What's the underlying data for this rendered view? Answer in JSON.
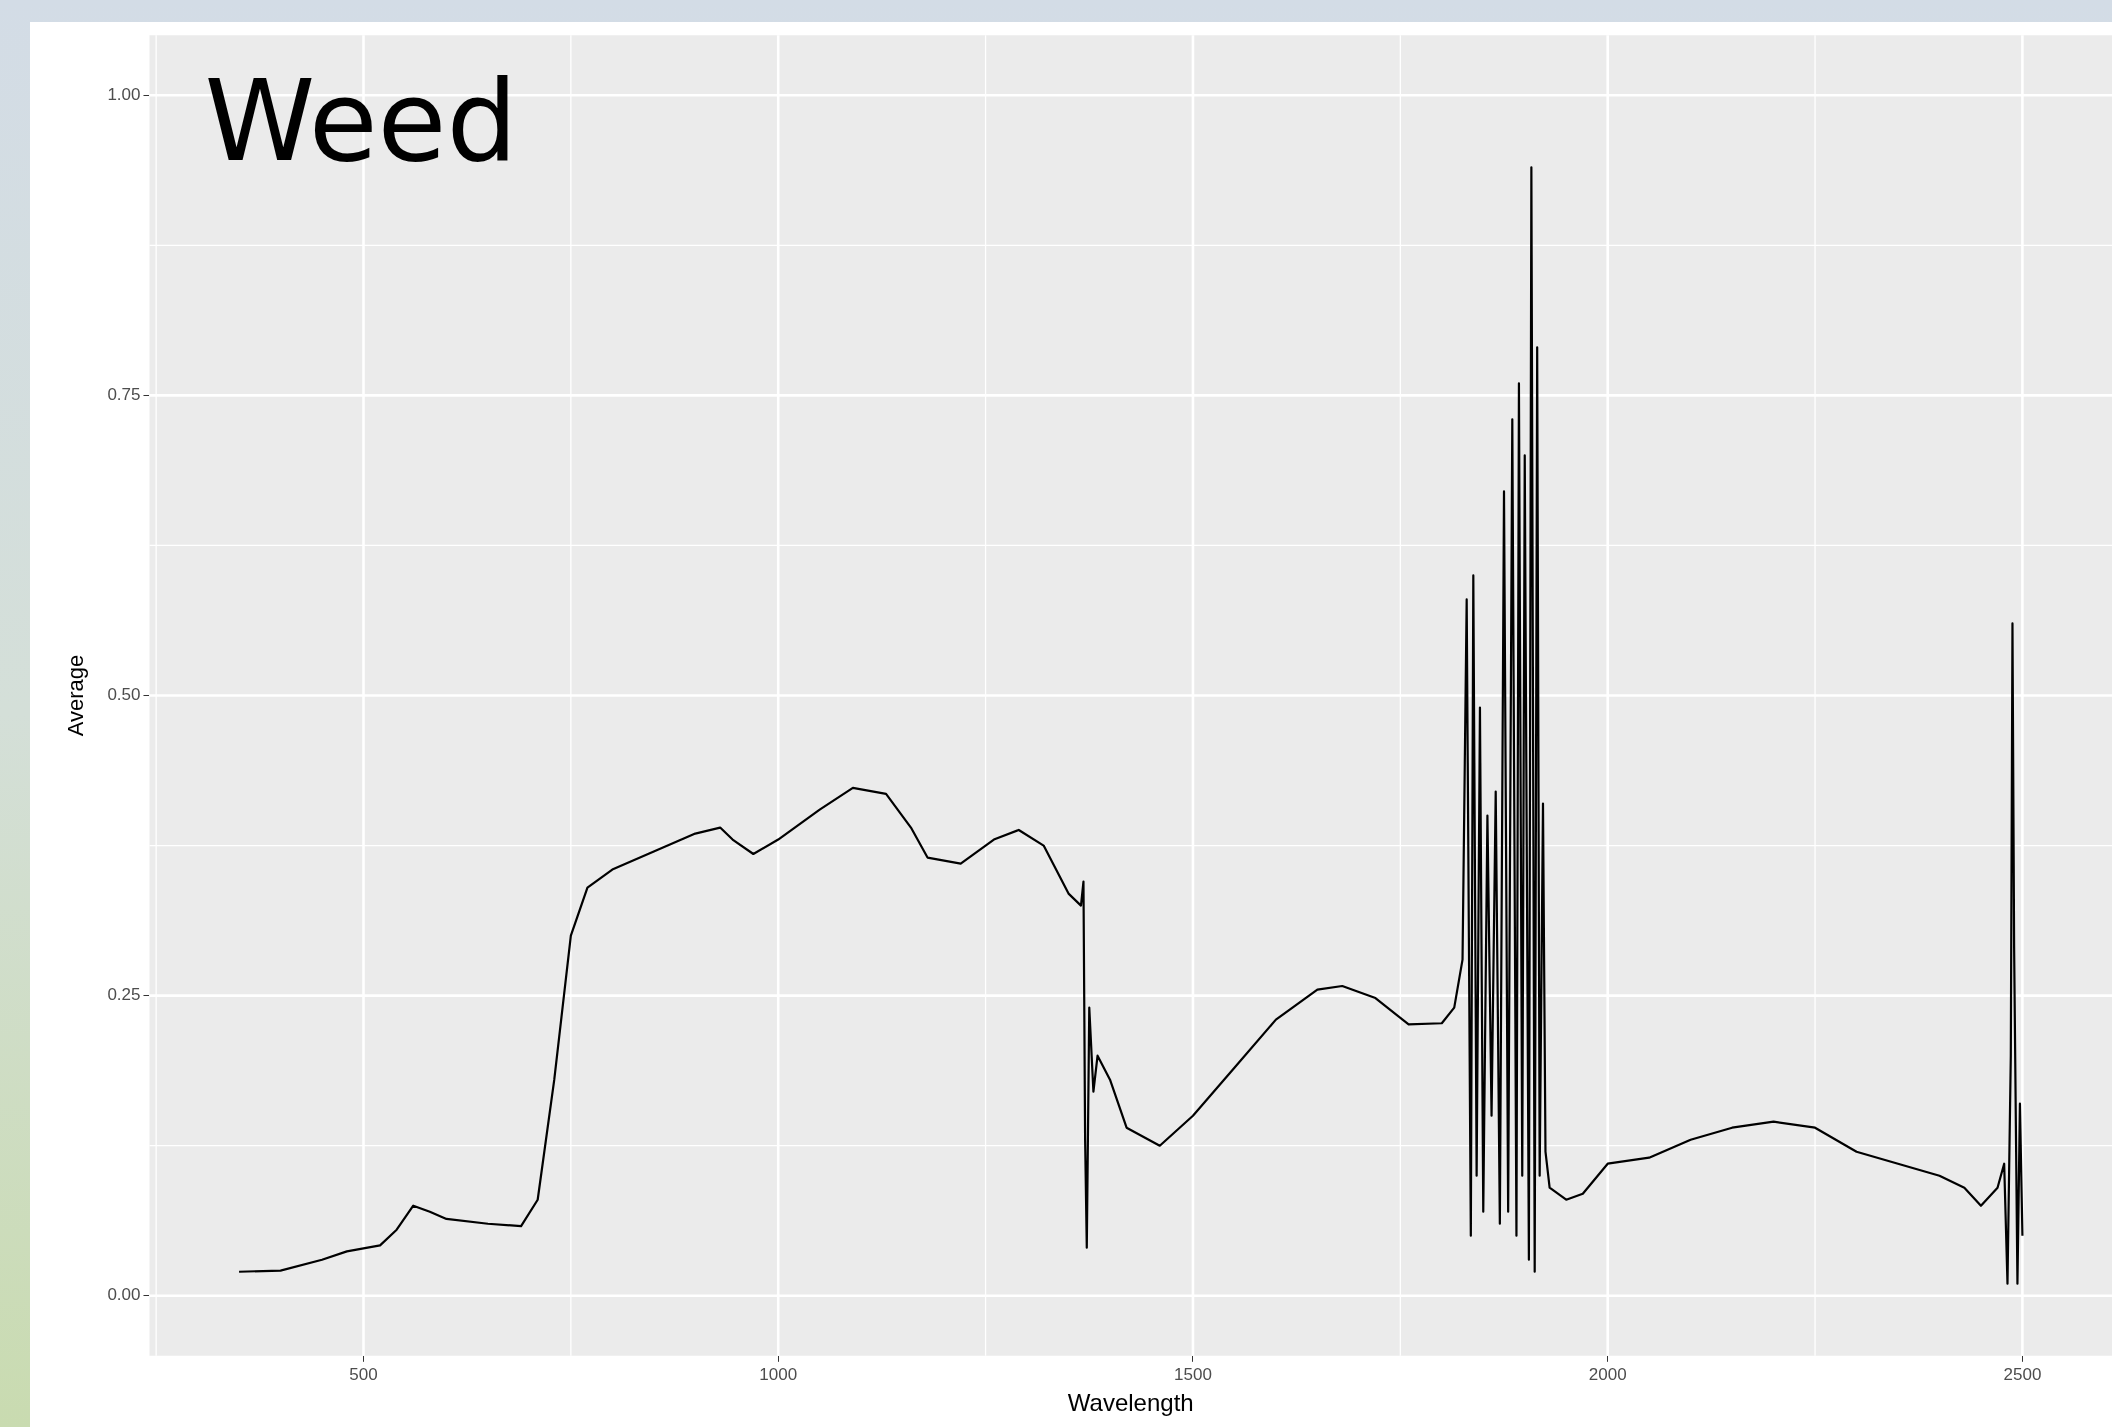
{
  "chart_data": {
    "type": "line",
    "title": "Weed",
    "xlabel": "Wavelength",
    "ylabel": "Average",
    "xlim": [
      242,
      2608
    ],
    "xticks": [
      500,
      1000,
      1500,
      2000,
      2500
    ],
    "ylim": [
      -0.05,
      1.05
    ],
    "yticks": [
      {
        "value": 0,
        "label": "0.00"
      },
      {
        "value": 0.25,
        "label": "0.25"
      },
      {
        "value": 0.5,
        "label": "0.50"
      },
      {
        "value": 0.75,
        "label": "0.75"
      },
      {
        "value": 1,
        "label": "1.00"
      }
    ],
    "grid": true,
    "legend": false,
    "marker": "none",
    "line_style": "solid",
    "series": [
      {
        "color": "#000000",
        "x": [
          350,
          400,
          450,
          480,
          520,
          540,
          560,
          580,
          600,
          650,
          690,
          710,
          730,
          750,
          770,
          800,
          850,
          900,
          930,
          945,
          970,
          1000,
          1050,
          1090,
          1130,
          1160,
          1180,
          1220,
          1260,
          1290,
          1320,
          1350,
          1365,
          1368,
          1370,
          1372,
          1375,
          1380,
          1385,
          1400,
          1420,
          1460,
          1500,
          1550,
          1600,
          1650,
          1680,
          1720,
          1760,
          1800,
          1815,
          1825,
          1830,
          1835,
          1838,
          1842,
          1846,
          1850,
          1855,
          1860,
          1865,
          1870,
          1875,
          1880,
          1885,
          1890,
          1893,
          1897,
          1900,
          1905,
          1908,
          1912,
          1915,
          1918,
          1922,
          1925,
          1930,
          1950,
          1970,
          2000,
          2050,
          2100,
          2150,
          2200,
          2250,
          2300,
          2350,
          2400,
          2430,
          2450,
          2470,
          2478,
          2482,
          2486,
          2488,
          2490,
          2494,
          2497,
          2500
        ],
        "values": [
          0.02,
          0.021,
          0.03,
          0.037,
          0.042,
          0.055,
          0.075,
          0.07,
          0.064,
          0.06,
          0.058,
          0.08,
          0.18,
          0.3,
          0.34,
          0.355,
          0.37,
          0.385,
          0.39,
          0.38,
          0.368,
          0.38,
          0.405,
          0.423,
          0.418,
          0.39,
          0.365,
          0.36,
          0.38,
          0.388,
          0.375,
          0.335,
          0.325,
          0.345,
          0.13,
          0.04,
          0.24,
          0.17,
          0.2,
          0.18,
          0.14,
          0.125,
          0.15,
          0.19,
          0.23,
          0.255,
          0.258,
          0.248,
          0.226,
          0.227,
          0.24,
          0.28,
          0.58,
          0.05,
          0.6,
          0.1,
          0.49,
          0.07,
          0.4,
          0.15,
          0.42,
          0.06,
          0.67,
          0.07,
          0.73,
          0.05,
          0.76,
          0.1,
          0.7,
          0.03,
          0.94,
          0.02,
          0.79,
          0.1,
          0.41,
          0.12,
          0.09,
          0.08,
          0.085,
          0.11,
          0.115,
          0.13,
          0.14,
          0.145,
          0.14,
          0.12,
          0.11,
          0.1,
          0.09,
          0.075,
          0.09,
          0.11,
          0.01,
          0.2,
          0.56,
          0.29,
          0.01,
          0.16,
          0.05
        ]
      }
    ]
  }
}
